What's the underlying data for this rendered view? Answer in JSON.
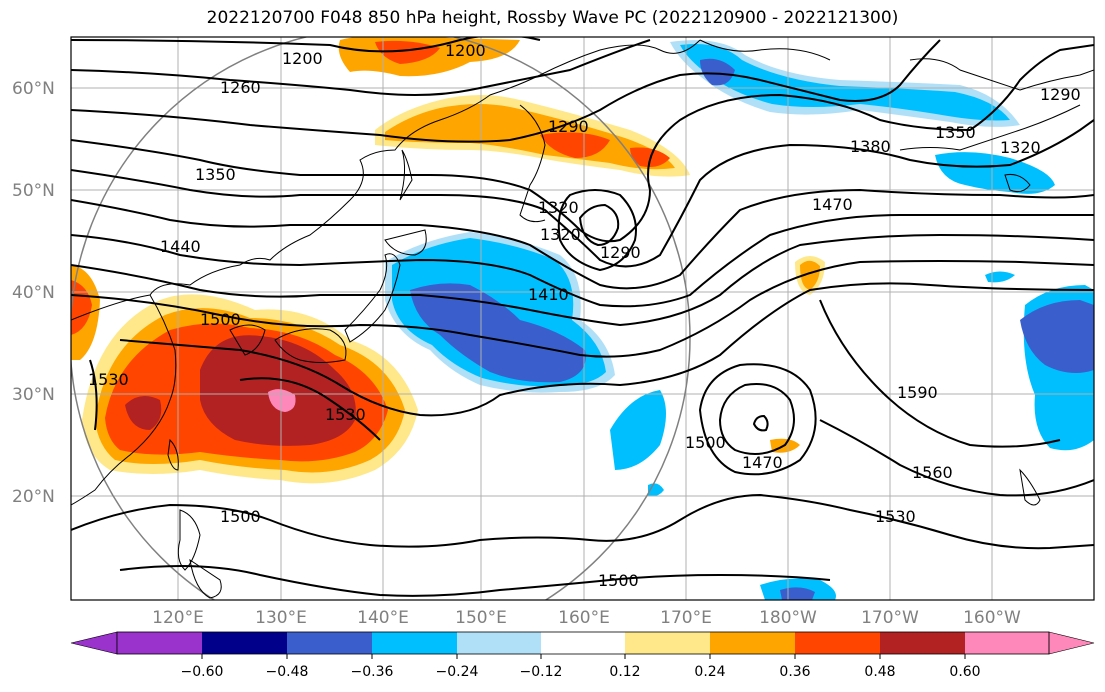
{
  "title": "2022120700 F048 850 hPa height, Rossby Wave PC (2022120900 - 2022121300)",
  "lat_ticks": [
    "60°N",
    "50°N",
    "40°N",
    "30°N",
    "20°N"
  ],
  "lon_ticks": [
    "120°E",
    "130°E",
    "140°E",
    "150°E",
    "160°E",
    "170°E",
    "180°W",
    "170°W",
    "160°W"
  ],
  "colorbar": {
    "labels": [
      "−0.60",
      "−0.48",
      "−0.36",
      "−0.24",
      "−0.12",
      "0.12",
      "0.24",
      "0.36",
      "0.48",
      "0.60"
    ],
    "colors": [
      "#9933cc",
      "#00008b",
      "#3a5fcd",
      "#00bfff",
      "#b0e0f8",
      "#ffffff",
      "#ffe88a",
      "#ffa500",
      "#ff4500",
      "#b22222",
      "#ff88bb"
    ]
  },
  "contour_labels": [
    "1200",
    "1200",
    "1260",
    "1290",
    "1290",
    "1290",
    "1350",
    "1320",
    "1320",
    "1380",
    "1350",
    "1320",
    "1470",
    "1440",
    "1410",
    "1500",
    "1530",
    "1530",
    "1500",
    "1470",
    "1590",
    "1560",
    "1530",
    "1500",
    "1500"
  ]
}
